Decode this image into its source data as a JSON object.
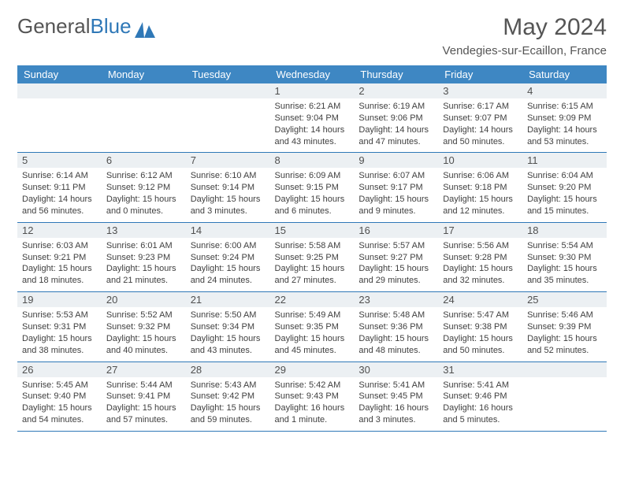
{
  "brand": {
    "word1": "General",
    "word2": "Blue"
  },
  "header": {
    "title": "May 2024",
    "location": "Vendegies-sur-Ecaillon, France"
  },
  "dow": [
    "Sunday",
    "Monday",
    "Tuesday",
    "Wednesday",
    "Thursday",
    "Friday",
    "Saturday"
  ],
  "colors": {
    "accent": "#3e87c3",
    "rule": "#2f78b7",
    "numbar": "#ecf0f3"
  },
  "weeks": [
    [
      null,
      null,
      null,
      {
        "n": "1",
        "sr": "6:21 AM",
        "ss": "9:04 PM",
        "dl": "14 hours and 43 minutes."
      },
      {
        "n": "2",
        "sr": "6:19 AM",
        "ss": "9:06 PM",
        "dl": "14 hours and 47 minutes."
      },
      {
        "n": "3",
        "sr": "6:17 AM",
        "ss": "9:07 PM",
        "dl": "14 hours and 50 minutes."
      },
      {
        "n": "4",
        "sr": "6:15 AM",
        "ss": "9:09 PM",
        "dl": "14 hours and 53 minutes."
      }
    ],
    [
      {
        "n": "5",
        "sr": "6:14 AM",
        "ss": "9:11 PM",
        "dl": "14 hours and 56 minutes."
      },
      {
        "n": "6",
        "sr": "6:12 AM",
        "ss": "9:12 PM",
        "dl": "15 hours and 0 minutes."
      },
      {
        "n": "7",
        "sr": "6:10 AM",
        "ss": "9:14 PM",
        "dl": "15 hours and 3 minutes."
      },
      {
        "n": "8",
        "sr": "6:09 AM",
        "ss": "9:15 PM",
        "dl": "15 hours and 6 minutes."
      },
      {
        "n": "9",
        "sr": "6:07 AM",
        "ss": "9:17 PM",
        "dl": "15 hours and 9 minutes."
      },
      {
        "n": "10",
        "sr": "6:06 AM",
        "ss": "9:18 PM",
        "dl": "15 hours and 12 minutes."
      },
      {
        "n": "11",
        "sr": "6:04 AM",
        "ss": "9:20 PM",
        "dl": "15 hours and 15 minutes."
      }
    ],
    [
      {
        "n": "12",
        "sr": "6:03 AM",
        "ss": "9:21 PM",
        "dl": "15 hours and 18 minutes."
      },
      {
        "n": "13",
        "sr": "6:01 AM",
        "ss": "9:23 PM",
        "dl": "15 hours and 21 minutes."
      },
      {
        "n": "14",
        "sr": "6:00 AM",
        "ss": "9:24 PM",
        "dl": "15 hours and 24 minutes."
      },
      {
        "n": "15",
        "sr": "5:58 AM",
        "ss": "9:25 PM",
        "dl": "15 hours and 27 minutes."
      },
      {
        "n": "16",
        "sr": "5:57 AM",
        "ss": "9:27 PM",
        "dl": "15 hours and 29 minutes."
      },
      {
        "n": "17",
        "sr": "5:56 AM",
        "ss": "9:28 PM",
        "dl": "15 hours and 32 minutes."
      },
      {
        "n": "18",
        "sr": "5:54 AM",
        "ss": "9:30 PM",
        "dl": "15 hours and 35 minutes."
      }
    ],
    [
      {
        "n": "19",
        "sr": "5:53 AM",
        "ss": "9:31 PM",
        "dl": "15 hours and 38 minutes."
      },
      {
        "n": "20",
        "sr": "5:52 AM",
        "ss": "9:32 PM",
        "dl": "15 hours and 40 minutes."
      },
      {
        "n": "21",
        "sr": "5:50 AM",
        "ss": "9:34 PM",
        "dl": "15 hours and 43 minutes."
      },
      {
        "n": "22",
        "sr": "5:49 AM",
        "ss": "9:35 PM",
        "dl": "15 hours and 45 minutes."
      },
      {
        "n": "23",
        "sr": "5:48 AM",
        "ss": "9:36 PM",
        "dl": "15 hours and 48 minutes."
      },
      {
        "n": "24",
        "sr": "5:47 AM",
        "ss": "9:38 PM",
        "dl": "15 hours and 50 minutes."
      },
      {
        "n": "25",
        "sr": "5:46 AM",
        "ss": "9:39 PM",
        "dl": "15 hours and 52 minutes."
      }
    ],
    [
      {
        "n": "26",
        "sr": "5:45 AM",
        "ss": "9:40 PM",
        "dl": "15 hours and 54 minutes."
      },
      {
        "n": "27",
        "sr": "5:44 AM",
        "ss": "9:41 PM",
        "dl": "15 hours and 57 minutes."
      },
      {
        "n": "28",
        "sr": "5:43 AM",
        "ss": "9:42 PM",
        "dl": "15 hours and 59 minutes."
      },
      {
        "n": "29",
        "sr": "5:42 AM",
        "ss": "9:43 PM",
        "dl": "16 hours and 1 minute."
      },
      {
        "n": "30",
        "sr": "5:41 AM",
        "ss": "9:45 PM",
        "dl": "16 hours and 3 minutes."
      },
      {
        "n": "31",
        "sr": "5:41 AM",
        "ss": "9:46 PM",
        "dl": "16 hours and 5 minutes."
      },
      null
    ]
  ],
  "labels": {
    "sunrise": "Sunrise: ",
    "sunset": "Sunset: ",
    "daylight": "Daylight: "
  }
}
